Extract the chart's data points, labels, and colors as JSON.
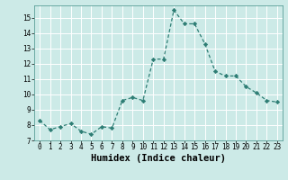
{
  "x": [
    0,
    1,
    2,
    3,
    4,
    5,
    6,
    7,
    8,
    9,
    10,
    11,
    12,
    13,
    14,
    15,
    16,
    17,
    18,
    19,
    20,
    21,
    22,
    23
  ],
  "y": [
    8.3,
    7.7,
    7.9,
    8.1,
    7.6,
    7.4,
    7.9,
    7.8,
    9.6,
    9.8,
    9.6,
    12.3,
    12.3,
    15.5,
    14.6,
    14.6,
    13.3,
    11.5,
    11.2,
    11.2,
    10.5,
    10.1,
    9.6,
    9.5
  ],
  "line_color": "#2d7d74",
  "marker": "D",
  "markersize": 2.2,
  "linewidth": 0.9,
  "bg_color": "#cceae7",
  "grid_color": "#ffffff",
  "xlabel": "Humidex (Indice chaleur)",
  "ylabel": "",
  "xlim": [
    -0.5,
    23.5
  ],
  "ylim": [
    7.0,
    15.8
  ],
  "yticks": [
    7,
    8,
    9,
    10,
    11,
    12,
    13,
    14,
    15
  ],
  "xticks": [
    0,
    1,
    2,
    3,
    4,
    5,
    6,
    7,
    8,
    9,
    10,
    11,
    12,
    13,
    14,
    15,
    16,
    17,
    18,
    19,
    20,
    21,
    22,
    23
  ],
  "tick_fontsize": 5.5,
  "xlabel_fontsize": 7.5
}
